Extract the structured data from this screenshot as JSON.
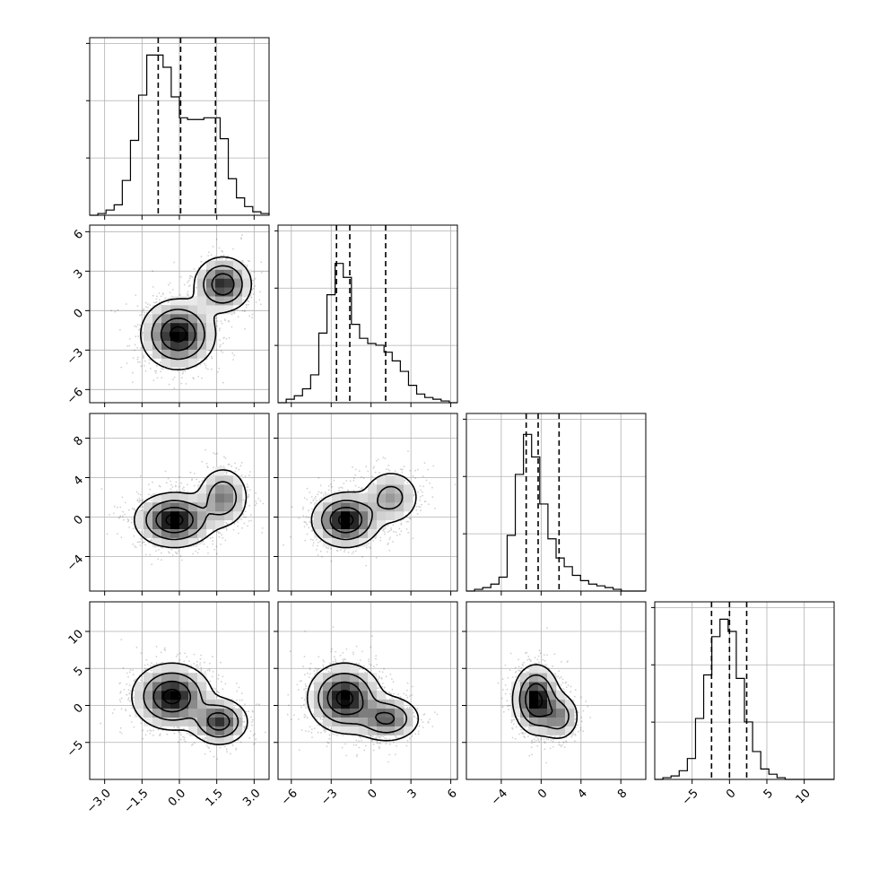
{
  "chart_data": {
    "type": "corner",
    "title": "",
    "variables": [
      {
        "range": [
          -3.6,
          3.6
        ],
        "ticks": [
          -3.0,
          -1.5,
          0.0,
          1.5,
          3.0
        ],
        "tick_labels": [
          "−3.0",
          "−1.5",
          "0.0",
          "1.5",
          "3.0"
        ],
        "quantiles": [
          -0.85,
          0.05,
          1.45
        ],
        "hist_max": 1.0,
        "hist": [
          0.0,
          0.01,
          0.03,
          0.06,
          0.2,
          0.43,
          0.69,
          0.92,
          0.92,
          0.85,
          0.68,
          0.56,
          0.55,
          0.55,
          0.56,
          0.56,
          0.44,
          0.21,
          0.1,
          0.05,
          0.02,
          0.01
        ]
      },
      {
        "range": [
          -7.0,
          6.5
        ],
        "ticks": [
          -6,
          -3,
          0,
          3,
          6
        ],
        "tick_labels": [
          "−6",
          "−3",
          "0",
          "3",
          "6"
        ],
        "quantiles": [
          -2.6,
          -1.6,
          1.1
        ],
        "hist_max": 1.0,
        "hist": [
          0.0,
          0.02,
          0.04,
          0.08,
          0.16,
          0.4,
          0.62,
          0.8,
          0.72,
          0.45,
          0.37,
          0.34,
          0.33,
          0.29,
          0.24,
          0.18,
          0.1,
          0.05,
          0.03,
          0.02,
          0.01,
          0.0
        ]
      },
      {
        "range": [
          -7.5,
          10.5
        ],
        "ticks": [
          -4,
          0,
          4,
          8
        ],
        "tick_labels": [
          "−4",
          "0",
          "4",
          "8"
        ],
        "quantiles": [
          -1.5,
          -0.3,
          1.8
        ],
        "hist_max": 1.0,
        "hist": [
          0.0,
          0.01,
          0.02,
          0.04,
          0.08,
          0.32,
          0.67,
          0.9,
          0.77,
          0.5,
          0.3,
          0.19,
          0.14,
          0.09,
          0.06,
          0.04,
          0.03,
          0.02,
          0.01,
          0.0,
          0.0,
          0.0
        ]
      },
      {
        "range": [
          -10.0,
          14.0
        ],
        "ticks": [
          -5,
          0,
          5,
          10
        ],
        "tick_labels": [
          "−5",
          "0",
          "5",
          "10"
        ],
        "quantiles": [
          -2.4,
          0.0,
          2.3
        ],
        "hist_max": 1.0,
        "hist": [
          0.0,
          0.01,
          0.02,
          0.05,
          0.12,
          0.35,
          0.6,
          0.82,
          0.92,
          0.85,
          0.58,
          0.33,
          0.16,
          0.06,
          0.03,
          0.01,
          0.0,
          0.0,
          0.0,
          0.0,
          0.0,
          0.0
        ]
      }
    ],
    "pairs": [
      {
        "row": 1,
        "col": 0,
        "components": [
          {
            "mean": [
              -0.05,
              -1.8
            ],
            "sd": [
              0.7,
              1.25
            ],
            "weight": 0.65
          },
          {
            "mean": [
              1.75,
              2.0
            ],
            "sd": [
              0.55,
              1.0
            ],
            "weight": 0.35
          }
        ]
      },
      {
        "row": 2,
        "col": 0,
        "components": [
          {
            "mean": [
              -0.2,
              -0.3
            ],
            "sd": [
              0.75,
              1.3
            ],
            "weight": 0.7
          },
          {
            "mean": [
              1.75,
              2.0
            ],
            "sd": [
              0.5,
              1.5
            ],
            "weight": 0.3
          }
        ]
      },
      {
        "row": 2,
        "col": 1,
        "components": [
          {
            "mean": [
              -1.9,
              -0.3
            ],
            "sd": [
              1.2,
              1.3
            ],
            "weight": 0.7
          },
          {
            "mean": [
              1.5,
              2.0
            ],
            "sd": [
              1.1,
              1.4
            ],
            "weight": 0.3
          }
        ]
      },
      {
        "row": 3,
        "col": 0,
        "components": [
          {
            "mean": [
              -0.3,
              1.2
            ],
            "sd": [
              0.75,
              2.1
            ],
            "weight": 0.7
          },
          {
            "mean": [
              1.6,
              -2.2
            ],
            "sd": [
              0.55,
              1.5
            ],
            "weight": 0.3
          }
        ]
      },
      {
        "row": 3,
        "col": 1,
        "components": [
          {
            "mean": [
              -2.0,
              1.0
            ],
            "sd": [
              1.3,
              2.2
            ],
            "weight": 0.7
          },
          {
            "mean": [
              1.2,
              -1.8
            ],
            "sd": [
              1.2,
              1.5
            ],
            "weight": 0.3
          }
        ]
      },
      {
        "row": 3,
        "col": 2,
        "components": [
          {
            "mean": [
              -0.5,
              0.8
            ],
            "sd": [
              1.1,
              2.2
            ],
            "weight": 0.75
          },
          {
            "mean": [
              1.8,
              -1.5
            ],
            "sd": [
              1.0,
              1.6
            ],
            "weight": 0.25
          }
        ]
      }
    ],
    "grid": true
  }
}
